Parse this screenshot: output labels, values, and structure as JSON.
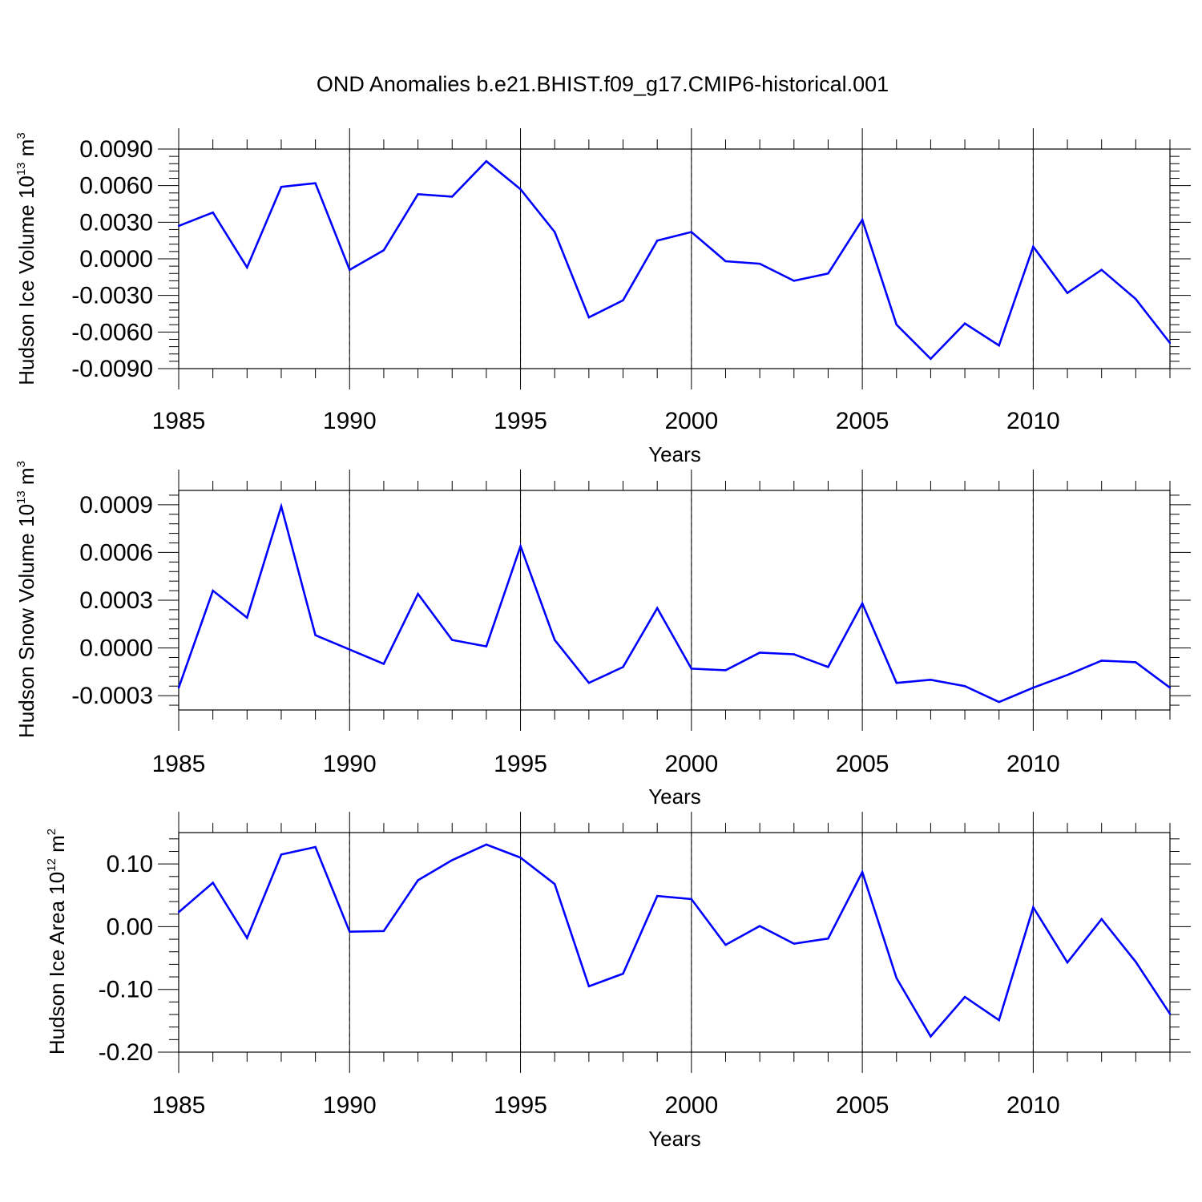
{
  "title": "OND Anomalies b.e21.BHIST.f09_g17.CMIP6-historical.001",
  "colors": {
    "line": "#0000ff",
    "grid": "#888888",
    "axis": "#000000"
  },
  "chart_data": [
    {
      "type": "line",
      "xlabel": "Years",
      "ylabel": {
        "main": "Hudson Ice Volume 10",
        "sup1": "13",
        "mid": " m",
        "sup2": "3"
      },
      "xlim": [
        1985,
        2014
      ],
      "ylim": [
        -0.009,
        0.009
      ],
      "xticks": [
        1985,
        1990,
        1995,
        2000,
        2005,
        2010
      ],
      "xtick_labels": [
        "1985",
        "1990",
        "1995",
        "2000",
        "2005",
        "2010"
      ],
      "yticks": [
        -0.009,
        -0.006,
        -0.003,
        0.0,
        0.003,
        0.006,
        0.009
      ],
      "ytick_labels": [
        "-0.0090",
        "-0.0060",
        "-0.0030",
        "0.0000",
        "0.0030",
        "0.0060",
        "0.0090"
      ],
      "x": [
        1985,
        1986,
        1987,
        1988,
        1989,
        1990,
        1991,
        1992,
        1993,
        1994,
        1995,
        1996,
        1997,
        1998,
        1999,
        2000,
        2001,
        2002,
        2003,
        2004,
        2005,
        2006,
        2007,
        2008,
        2009,
        2010,
        2011,
        2012,
        2013,
        2014
      ],
      "y": [
        0.0027,
        0.0038,
        -0.0007,
        0.0059,
        0.0062,
        -0.0009,
        0.0007,
        0.0053,
        0.0051,
        0.008,
        0.0057,
        0.0022,
        -0.0048,
        -0.0034,
        0.0015,
        0.0022,
        -0.0002,
        -0.0004,
        -0.0018,
        -0.0012,
        0.0032,
        -0.0054,
        -0.0082,
        -0.0053,
        -0.0071,
        0.001,
        -0.0028,
        -0.0009,
        -0.0033,
        -0.0069
      ],
      "grid": "vertical-dashed"
    },
    {
      "type": "line",
      "xlabel": "Years",
      "ylabel": {
        "main": "Hudson Snow Volume 10",
        "sup1": "13",
        "mid": " m",
        "sup2": "3"
      },
      "xlim": [
        1985,
        2014
      ],
      "ylim": [
        -0.00039,
        0.00099
      ],
      "xticks": [
        1985,
        1990,
        1995,
        2000,
        2005,
        2010
      ],
      "xtick_labels": [
        "1985",
        "1990",
        "1995",
        "2000",
        "2005",
        "2010"
      ],
      "yticks": [
        -0.0003,
        0.0,
        0.0003,
        0.0006,
        0.0009
      ],
      "ytick_labels": [
        "-0.0003",
        "0.0000",
        "0.0003",
        "0.0006",
        "0.0009"
      ],
      "x": [
        1985,
        1986,
        1987,
        1988,
        1989,
        1990,
        1991,
        1992,
        1993,
        1994,
        1995,
        1996,
        1997,
        1998,
        1999,
        2000,
        2001,
        2002,
        2003,
        2004,
        2005,
        2006,
        2007,
        2008,
        2009,
        2010,
        2011,
        2012,
        2013,
        2014
      ],
      "y": [
        -0.00025,
        0.00036,
        0.00019,
        0.00089,
        8e-05,
        -1e-05,
        -0.0001,
        0.00034,
        5e-05,
        1e-05,
        0.00064,
        5e-05,
        -0.00022,
        -0.00012,
        0.00025,
        -0.00013,
        -0.00014,
        -3e-05,
        -4e-05,
        -0.00012,
        0.00028,
        -0.00022,
        -0.0002,
        -0.00024,
        -0.00034,
        -0.00025,
        -0.00017,
        -8e-05,
        -9e-05,
        -0.00025
      ],
      "grid": "vertical-dashed"
    },
    {
      "type": "line",
      "xlabel": "Years",
      "ylabel": {
        "main": "Hudson Ice Area 10",
        "sup1": "12",
        "mid": " m",
        "sup2": "2"
      },
      "xlim": [
        1985,
        2014
      ],
      "ylim": [
        -0.2,
        0.15
      ],
      "xticks": [
        1985,
        1990,
        1995,
        2000,
        2005,
        2010
      ],
      "xtick_labels": [
        "1985",
        "1990",
        "1995",
        "2000",
        "2005",
        "2010"
      ],
      "yticks": [
        -0.2,
        -0.1,
        0.0,
        0.1
      ],
      "ytick_labels": [
        "-0.20",
        "-0.10",
        "0.00",
        "0.10"
      ],
      "x": [
        1985,
        1986,
        1987,
        1988,
        1989,
        1990,
        1991,
        1992,
        1993,
        1994,
        1995,
        1996,
        1997,
        1998,
        1999,
        2000,
        2001,
        2002,
        2003,
        2004,
        2005,
        2006,
        2007,
        2008,
        2009,
        2010,
        2011,
        2012,
        2013,
        2014
      ],
      "y": [
        0.023,
        0.07,
        -0.018,
        0.115,
        0.127,
        -0.008,
        -0.007,
        0.074,
        0.106,
        0.131,
        0.11,
        0.068,
        -0.095,
        -0.075,
        0.049,
        0.044,
        -0.029,
        0.001,
        -0.027,
        -0.019,
        0.087,
        -0.082,
        -0.175,
        -0.112,
        -0.149,
        0.031,
        -0.057,
        0.012,
        -0.056,
        -0.139
      ],
      "grid": "vertical-dashed"
    }
  ]
}
